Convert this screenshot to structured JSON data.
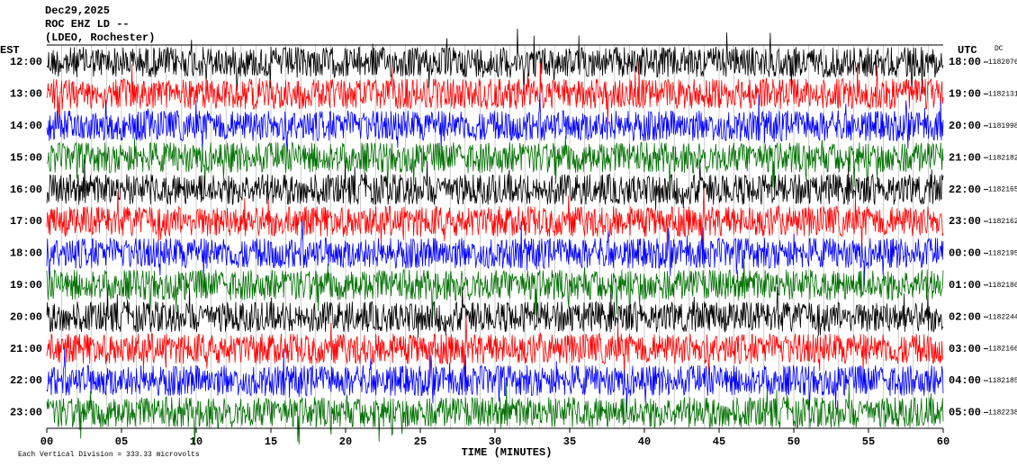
{
  "chart_data": {
    "type": "helicorder",
    "title": "Dec29,2025",
    "subtitle": "ROC EHZ LD --",
    "station": "(LDEO, Rochester)",
    "left_axis_label": "EST",
    "right_axis_label": "UTC",
    "dc_label": "DC",
    "xlabel": "TIME (MINUTES)",
    "note": "Each Vertical Division =  333.33 microvolts",
    "xlim": [
      0,
      60
    ],
    "xticks": [
      {
        "value": 0,
        "label": "00"
      },
      {
        "value": 5,
        "label": "05"
      },
      10,
      15,
      20,
      25,
      30,
      35,
      40,
      45,
      50,
      55,
      60
    ],
    "rows": {
      "est": [
        "12:00",
        "13:00",
        "14:00",
        "15:00",
        "16:00",
        "17:00",
        "18:00",
        "19:00",
        "20:00",
        "21:00",
        "22:00",
        "23:00"
      ],
      "utc": [
        "18:00",
        "19:00",
        "20:00",
        "21:00",
        "22:00",
        "23:00",
        "00:00",
        "01:00",
        "02:00",
        "03:00",
        "04:00",
        "05:00"
      ],
      "dc": [
        1182076,
        1182131,
        1181998,
        1182182,
        1182165,
        1182162,
        1182195,
        1182186,
        1182244,
        1182166,
        1182185,
        1182238
      ],
      "colors": [
        "#000000",
        "#ff0000",
        "#0000ff",
        "#007000",
        "#000000",
        "#ff0000",
        "#0000ff",
        "#007000",
        "#000000",
        "#ff0000",
        "#0000ff",
        "#007000"
      ]
    }
  }
}
